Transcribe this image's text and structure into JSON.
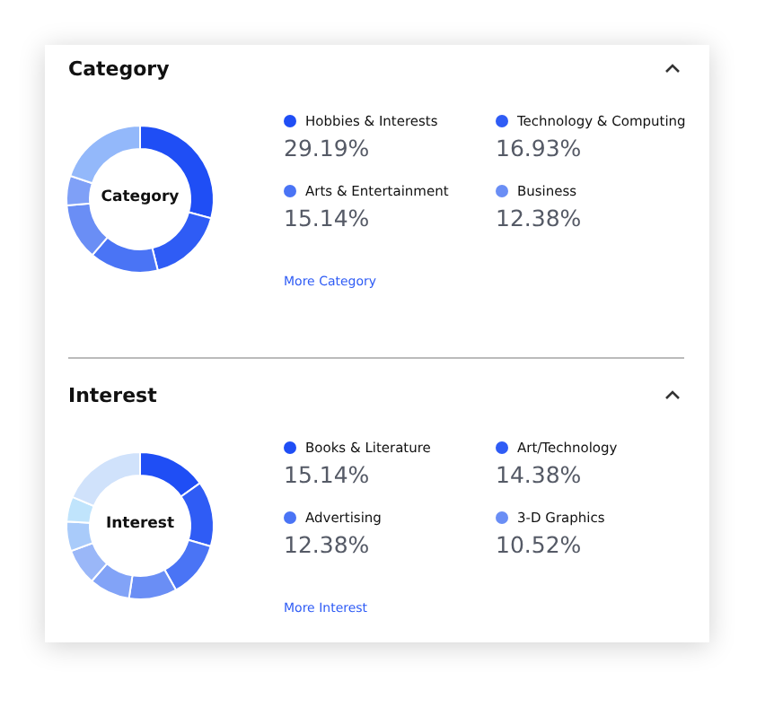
{
  "chart_data": [
    {
      "type": "donut",
      "title": "Category",
      "categories": [
        "Hobbies & Interests",
        "Technology & Computing",
        "Arts & Entertainment",
        "Business",
        null,
        null
      ],
      "values": [
        29.19,
        16.93,
        15.14,
        12.38,
        6.5,
        19.86
      ],
      "colors": [
        "#1f4ef5",
        "#2f5cf5",
        "#4a74f5",
        "#6a8ef5",
        "#7fa0f7",
        "#93b8fa"
      ],
      "value_labels": [
        "29.19%",
        "16.93%",
        "15.14%",
        "12.38%",
        null,
        null
      ],
      "legend": "right",
      "annotations": [
        "Category",
        "More Category"
      ]
    },
    {
      "type": "donut",
      "title": "Interest",
      "categories": [
        "Books & Literature",
        "Art/Technology",
        "Advertising",
        "3-D Graphics",
        null,
        null,
        null,
        null,
        null
      ],
      "values": [
        15.14,
        14.38,
        12.38,
        10.52,
        9,
        8,
        6.5,
        5.5,
        18.58
      ],
      "colors": [
        "#1f4ef5",
        "#2f5cf5",
        "#4a74f5",
        "#6a8ef5",
        "#82a3f7",
        "#9ab7f8",
        "#a9cbfa",
        "#c0e4fc",
        "#d0e2fb"
      ],
      "value_labels": [
        "15.14%",
        "14.38%",
        "12.38%",
        "10.52%",
        null,
        null,
        null,
        null,
        null
      ],
      "legend": "right",
      "annotations": [
        "Interest",
        "More Interest"
      ]
    }
  ]
}
